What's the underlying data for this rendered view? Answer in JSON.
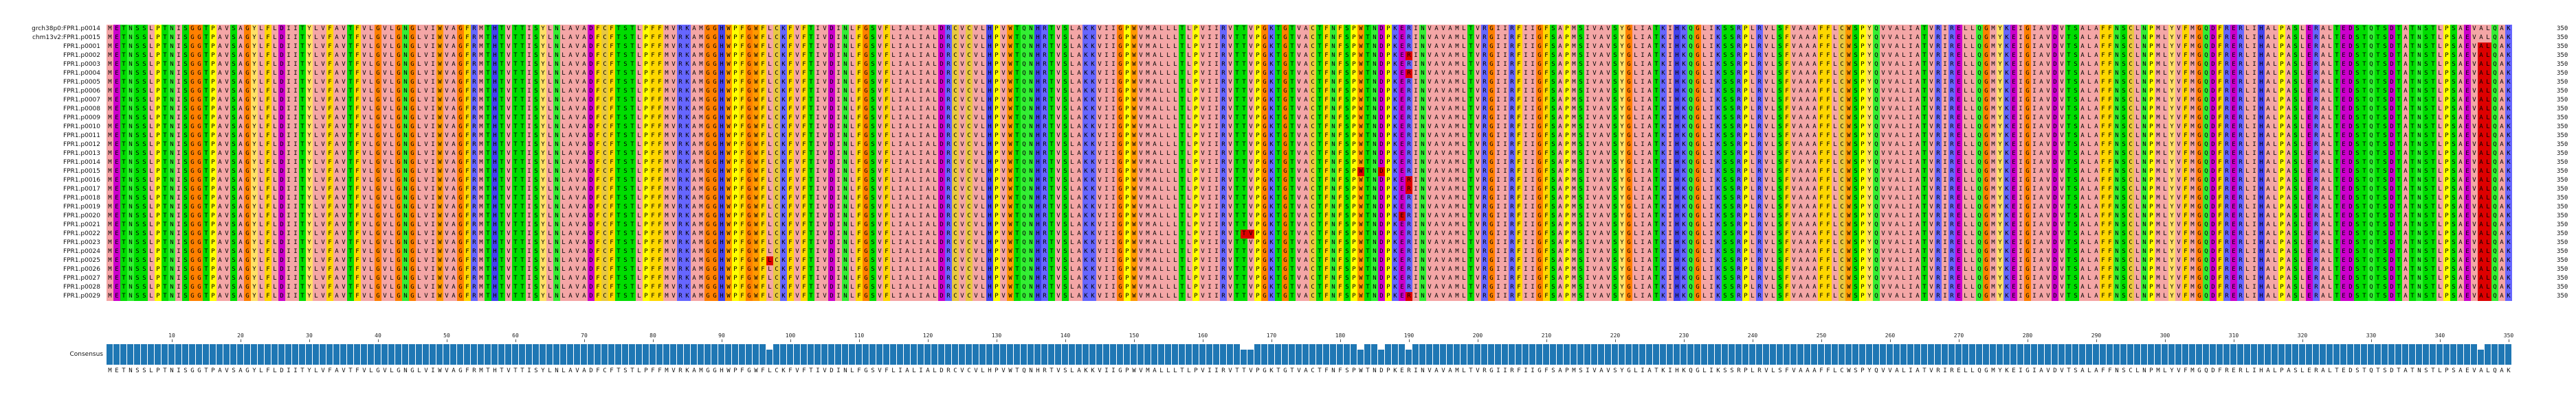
{
  "sequence_names": [
    "grch38p0:FPR1.p0014",
    "chm13v2:FPR1.p0015",
    "FPR1.p0001",
    "FPR1.p0002",
    "FPR1.p0003",
    "FPR1.p0004",
    "FPR1.p0005",
    "FPR1.p0006",
    "FPR1.p0007",
    "FPR1.p0008",
    "FPR1.p0009",
    "FPR1.p0010",
    "FPR1.p0011",
    "FPR1.p0012",
    "FPR1.p0013",
    "FPR1.p0014",
    "FPR1.p0015",
    "FPR1.p0016",
    "FPR1.p0017",
    "FPR1.p0018",
    "FPR1.p0019",
    "FPR1.p0020",
    "FPR1.p0021",
    "FPR1.p0022",
    "FPR1.p0023",
    "FPR1.p0024",
    "FPR1.p0025",
    "FPR1.p0026",
    "FPR1.p0027",
    "FPR1.p0028",
    "FPR1.p0029"
  ],
  "sequence_length_label": "350",
  "consensus_label": "Consensus",
  "consensus_sequence": "METNSSLPTNISGGTPAVSAGYLFLDIITYLVFAVTFVLGVLGNGLVIWVAGFRMTHTVTTISYLNLAVADFCFTSTLPFFMVRKAMGGHWPFGWFLCKFVFTIVDINLFGSVFLIALIALDRCVCVLHPVWTQNHRTVSLAKKVIIGPWVMALLLTLPVIIRVTTVPGKTGTVACTFNFSPWTNDPKERINVAVAMLTVRGIIRFIIGFSAPMSIVAVSYGLIATKIHKQGLIKSSRPLRVLSFVAAAFFLCWSPYQVVALIATVRIRELLQGMYKEIGIAVDVTSALAFFNSCLNPMLYVFMGQDFRERLIHALPASLERALTEDSTQTSDTATNSTLPSAEVALQAK",
  "ruler_ticks": [
    "10",
    "20",
    "30",
    "40",
    "50",
    "60",
    "70",
    "80",
    "90",
    "100",
    "110",
    "120",
    "130",
    "140",
    "150",
    "160",
    "170",
    "180",
    "190",
    "200",
    "210",
    "220",
    "230",
    "240",
    "250",
    "260",
    "270",
    "280",
    "290",
    "300",
    "310",
    "320",
    "330",
    "340",
    "350"
  ],
  "residue_colors": {
    "A": "#f4a6a6",
    "V": "#f4a6a6",
    "L": "#f4a6a6",
    "I": "#f4a6a6",
    "M": "#f4a6a6",
    "F": "#ffd700",
    "W": "#ff9900",
    "Y": "#ffe066",
    "C": "#e8c840",
    "G": "#ff8000",
    "P": "#ffff00",
    "S": "#00dd00",
    "T": "#00dd00",
    "N": "#33ee33",
    "Q": "#33ee33",
    "D": "#cc00cc",
    "E": "#cc00cc",
    "K": "#6666ff",
    "R": "#6666ff",
    "H": "#4444ee"
  },
  "highlight_color": "#dd0000",
  "consensus_bar_color": "#1f77b4"
}
